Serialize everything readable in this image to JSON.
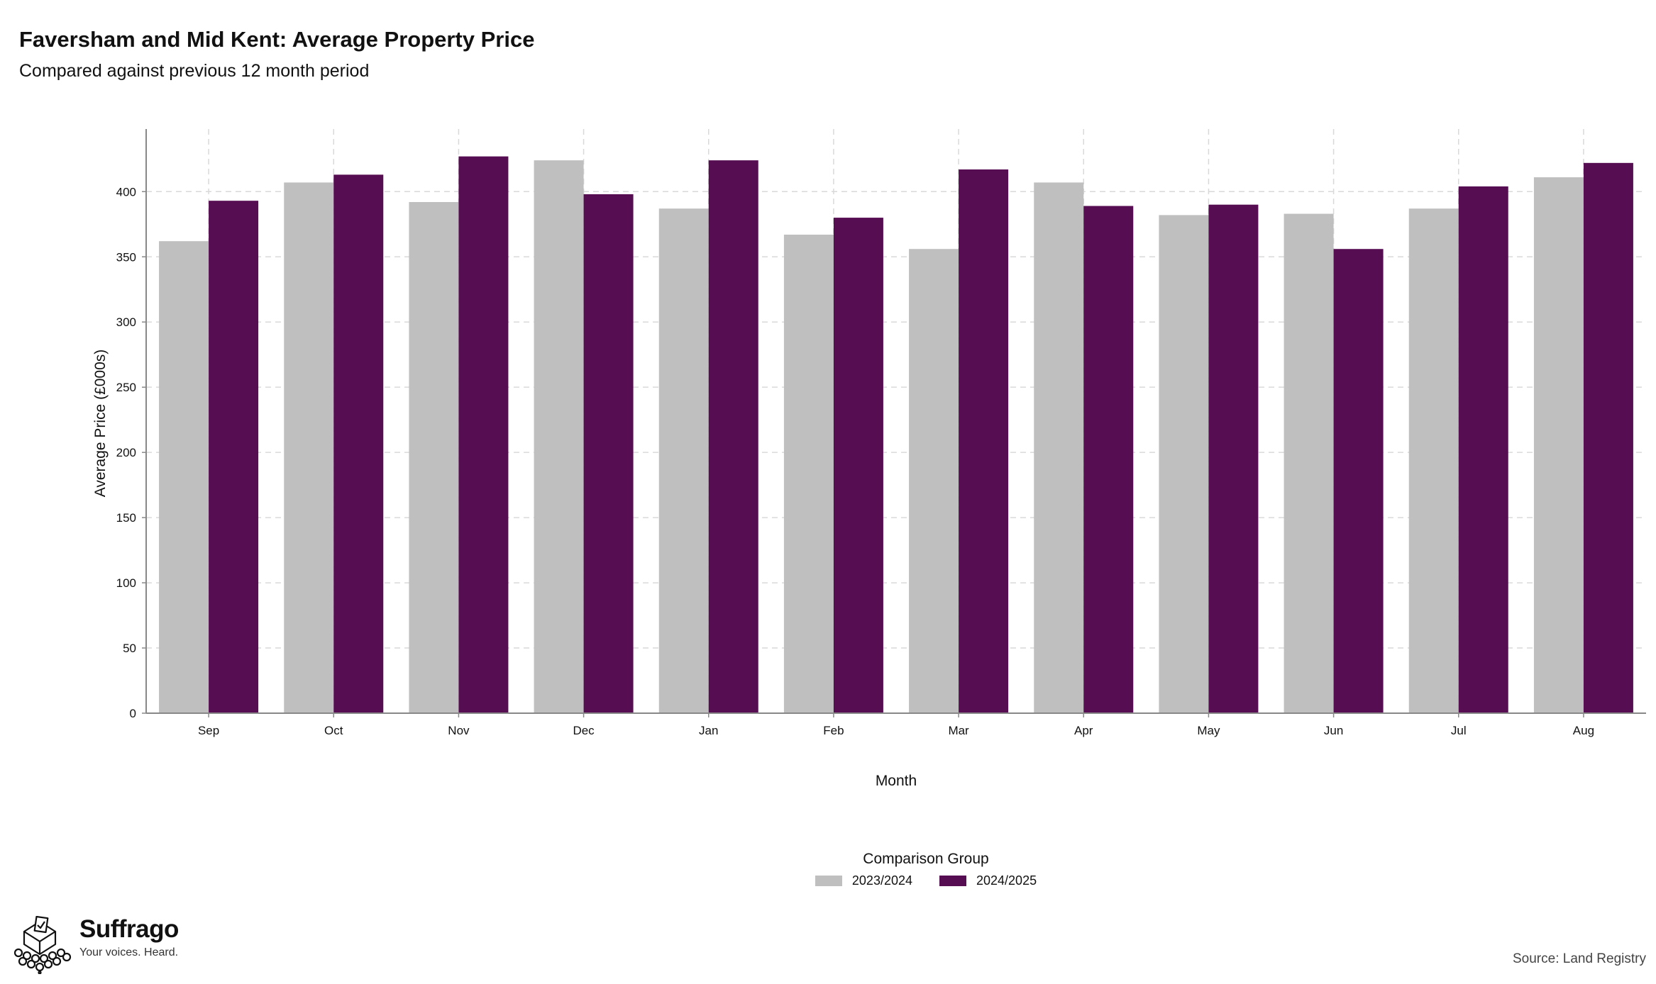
{
  "header": {
    "title": "Faversham and Mid Kent: Average Property Price",
    "subtitle": "Compared against previous 12 month period"
  },
  "legend": {
    "title": "Comparison Group",
    "items": [
      {
        "label": "2023/2024",
        "color": "#bfbfbf"
      },
      {
        "label": "2024/2025",
        "color": "#570d52"
      }
    ]
  },
  "brand": {
    "name": "Suffrago",
    "tagline": "Your voices. Heard.",
    "logo_icon": "ballot-box-crowd-icon"
  },
  "footer": {
    "source": "Source: Land Registry"
  },
  "chart_data": {
    "type": "bar",
    "xlabel": "Month",
    "ylabel": "Average Price (£000s)",
    "categories": [
      "Sep",
      "Oct",
      "Nov",
      "Dec",
      "Jan",
      "Feb",
      "Mar",
      "Apr",
      "May",
      "Jun",
      "Jul",
      "Aug"
    ],
    "series": [
      {
        "name": "2023/2024",
        "color": "#bfbfbf",
        "values": [
          362,
          407,
          392,
          424,
          387,
          367,
          356,
          407,
          382,
          383,
          387,
          411
        ]
      },
      {
        "name": "2024/2025",
        "color": "#570d52",
        "values": [
          393,
          413,
          427,
          398,
          424,
          380,
          417,
          389,
          390,
          356,
          404,
          422
        ]
      }
    ],
    "ylim": [
      0,
      448
    ],
    "yticks": [
      0,
      50,
      100,
      150,
      200,
      250,
      300,
      350,
      400
    ],
    "grid": true,
    "legend_position": "bottom"
  }
}
